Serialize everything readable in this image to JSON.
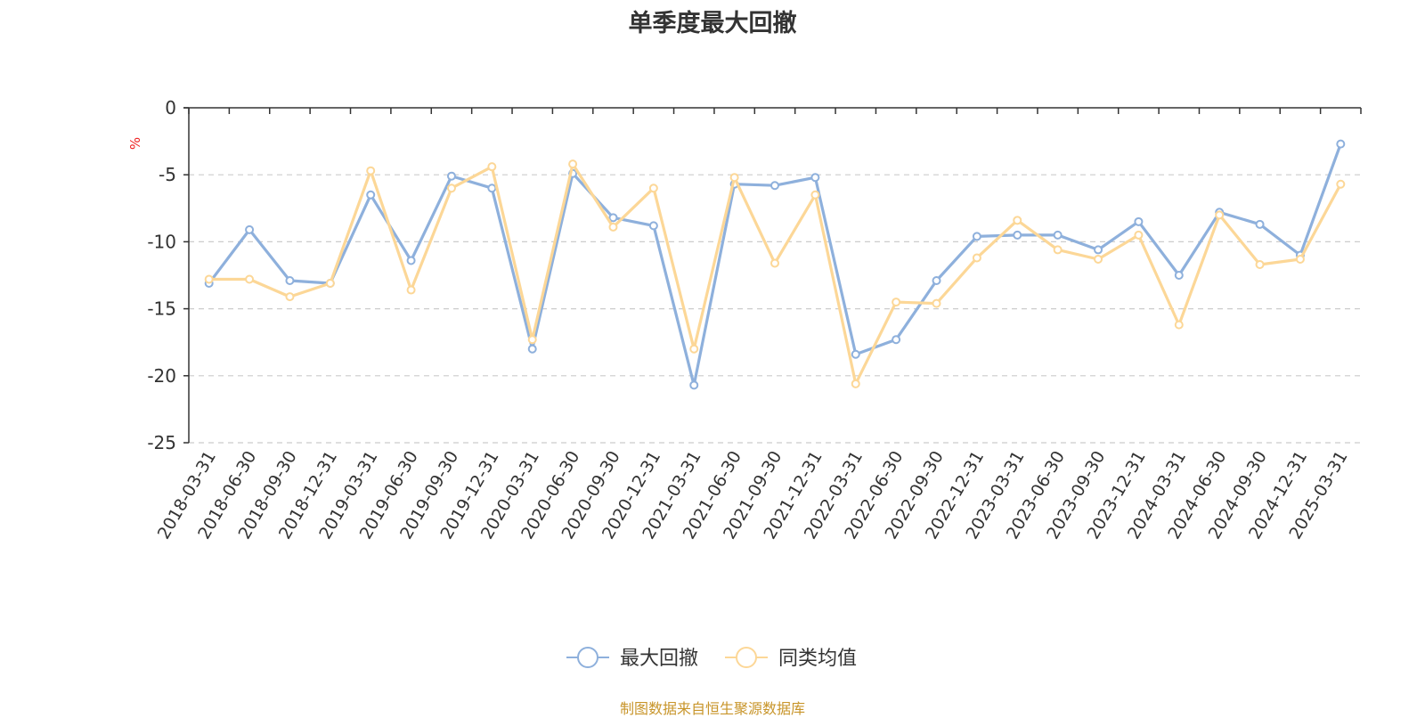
{
  "chart_data": {
    "type": "line",
    "title": "单季度最大回撤",
    "ylabel": "%",
    "ylim": [
      -25,
      0
    ],
    "yticks": [
      0,
      -5,
      -10,
      -15,
      -20,
      -25
    ],
    "grid": true,
    "legend_position": "bottom-center",
    "categories": [
      "2018-03-31",
      "2018-06-30",
      "2018-09-30",
      "2018-12-31",
      "2019-03-31",
      "2019-06-30",
      "2019-09-30",
      "2019-12-31",
      "2020-03-31",
      "2020-06-30",
      "2020-09-30",
      "2020-12-31",
      "2021-03-31",
      "2021-06-30",
      "2021-09-30",
      "2021-12-31",
      "2022-03-31",
      "2022-06-30",
      "2022-09-30",
      "2022-12-31",
      "2023-03-31",
      "2023-06-30",
      "2023-09-30",
      "2023-12-31",
      "2024-03-31",
      "2024-06-30",
      "2024-09-30",
      "2024-12-31",
      "2025-03-31"
    ],
    "series": [
      {
        "name": "最大回撤",
        "color": "#8eb0dc",
        "values": [
          -13.1,
          -9.1,
          -12.9,
          -13.1,
          -6.5,
          -11.4,
          -5.1,
          -6.0,
          -18.0,
          -4.9,
          -8.2,
          -8.8,
          -20.7,
          -5.7,
          -5.8,
          -5.2,
          -18.4,
          -17.3,
          -12.9,
          -9.6,
          -9.5,
          -9.5,
          -10.6,
          -8.5,
          -12.5,
          -7.8,
          -8.7,
          -11.0,
          -2.7
        ]
      },
      {
        "name": "同类均值",
        "color": "#fcd797",
        "values": [
          -12.8,
          -12.8,
          -14.1,
          -13.1,
          -4.7,
          -13.6,
          -6.0,
          -4.4,
          -17.3,
          -4.2,
          -8.9,
          -6.0,
          -18.0,
          -5.2,
          -11.6,
          -6.5,
          -20.6,
          -14.5,
          -14.6,
          -11.2,
          -8.4,
          -10.6,
          -11.3,
          -9.5,
          -16.2,
          -8.0,
          -11.7,
          -11.3,
          -5.7
        ]
      }
    ]
  },
  "footer": {
    "source": "制图数据来自恒生聚源数据库"
  },
  "colors": {
    "axis": "#333333",
    "grid": "#cccccc",
    "ylabel": "#ee2222",
    "source": "#c8952a"
  }
}
